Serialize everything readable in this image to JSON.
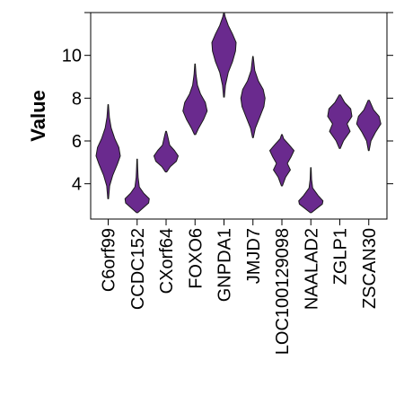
{
  "chart_data": {
    "type": "violin",
    "title": "",
    "xlabel": "",
    "ylabel": "Value",
    "ylim": [
      2.35,
      12.0
    ],
    "yticks": [
      4,
      6,
      8,
      10
    ],
    "fill_color": "#6a2a8e",
    "stroke_color": "#1a1a1a",
    "categories": [
      "C6orf99",
      "CCDC152",
      "CXorf64",
      "FOXO6",
      "GNPDA1",
      "JMJD7",
      "LOC100129098",
      "NAALAD2",
      "ZGLP1",
      "ZSCAN30"
    ],
    "violins": [
      {
        "name": "C6orf99",
        "min": 3.3,
        "max": 7.7,
        "profile": [
          [
            3.3,
            0.03
          ],
          [
            3.9,
            0.12
          ],
          [
            4.4,
            0.38
          ],
          [
            4.9,
            0.75
          ],
          [
            5.3,
            1.0
          ],
          [
            5.7,
            0.88
          ],
          [
            6.1,
            0.55
          ],
          [
            6.6,
            0.25
          ],
          [
            7.1,
            0.1
          ],
          [
            7.7,
            0.02
          ]
        ]
      },
      {
        "name": "CCDC152",
        "min": 2.65,
        "max": 5.15,
        "profile": [
          [
            2.65,
            0.05
          ],
          [
            2.85,
            0.45
          ],
          [
            3.1,
            0.95
          ],
          [
            3.3,
            1.0
          ],
          [
            3.55,
            0.55
          ],
          [
            3.85,
            0.18
          ],
          [
            4.3,
            0.08
          ],
          [
            4.8,
            0.04
          ],
          [
            5.15,
            0.02
          ]
        ]
      },
      {
        "name": "CXorf64",
        "min": 4.55,
        "max": 6.45,
        "profile": [
          [
            4.55,
            0.05
          ],
          [
            4.8,
            0.35
          ],
          [
            5.05,
            0.85
          ],
          [
            5.3,
            1.0
          ],
          [
            5.55,
            0.7
          ],
          [
            5.8,
            0.3
          ],
          [
            6.0,
            0.22
          ],
          [
            6.25,
            0.12
          ],
          [
            6.45,
            0.03
          ]
        ]
      },
      {
        "name": "FOXO6",
        "min": 6.3,
        "max": 9.6,
        "profile": [
          [
            6.3,
            0.05
          ],
          [
            6.6,
            0.3
          ],
          [
            7.0,
            0.7
          ],
          [
            7.4,
            1.0
          ],
          [
            7.8,
            0.85
          ],
          [
            8.2,
            0.45
          ],
          [
            8.6,
            0.2
          ],
          [
            9.1,
            0.08
          ],
          [
            9.6,
            0.02
          ]
        ]
      },
      {
        "name": "GNPDA1",
        "min": 8.05,
        "max": 12.0,
        "profile": [
          [
            8.05,
            0.03
          ],
          [
            8.6,
            0.12
          ],
          [
            9.2,
            0.35
          ],
          [
            9.7,
            0.7
          ],
          [
            10.2,
            0.95
          ],
          [
            10.6,
            1.0
          ],
          [
            11.0,
            0.7
          ],
          [
            11.4,
            0.35
          ],
          [
            11.8,
            0.1
          ],
          [
            12.0,
            0.02
          ]
        ]
      },
      {
        "name": "JMJD7",
        "min": 6.15,
        "max": 9.95,
        "profile": [
          [
            6.15,
            0.03
          ],
          [
            6.6,
            0.2
          ],
          [
            7.1,
            0.55
          ],
          [
            7.6,
            0.9
          ],
          [
            8.0,
            1.0
          ],
          [
            8.4,
            0.85
          ],
          [
            8.8,
            0.45
          ],
          [
            9.3,
            0.15
          ],
          [
            9.95,
            0.02
          ]
        ]
      },
      {
        "name": "LOC100129098",
        "min": 3.9,
        "max": 6.3,
        "profile": [
          [
            3.9,
            0.04
          ],
          [
            4.3,
            0.3
          ],
          [
            4.65,
            0.7
          ],
          [
            4.95,
            0.45
          ],
          [
            5.25,
            0.75
          ],
          [
            5.55,
            1.0
          ],
          [
            5.85,
            0.55
          ],
          [
            6.1,
            0.15
          ],
          [
            6.3,
            0.03
          ]
        ]
      },
      {
        "name": "NAALAD2",
        "min": 2.65,
        "max": 4.75,
        "profile": [
          [
            2.65,
            0.05
          ],
          [
            2.85,
            0.5
          ],
          [
            3.05,
            0.95
          ],
          [
            3.2,
            1.0
          ],
          [
            3.45,
            0.6
          ],
          [
            3.8,
            0.15
          ],
          [
            4.2,
            0.06
          ],
          [
            4.75,
            0.02
          ]
        ]
      },
      {
        "name": "ZGLP1",
        "min": 5.65,
        "max": 8.15,
        "profile": [
          [
            5.65,
            0.04
          ],
          [
            6.0,
            0.3
          ],
          [
            6.45,
            0.85
          ],
          [
            6.8,
            0.6
          ],
          [
            7.15,
            1.0
          ],
          [
            7.5,
            0.9
          ],
          [
            7.8,
            0.4
          ],
          [
            8.15,
            0.05
          ]
        ]
      },
      {
        "name": "ZSCAN30",
        "min": 5.55,
        "max": 7.9,
        "profile": [
          [
            5.55,
            0.03
          ],
          [
            6.0,
            0.18
          ],
          [
            6.4,
            0.55
          ],
          [
            6.8,
            1.0
          ],
          [
            7.15,
            0.85
          ],
          [
            7.45,
            0.4
          ],
          [
            7.9,
            0.05
          ]
        ]
      }
    ]
  }
}
